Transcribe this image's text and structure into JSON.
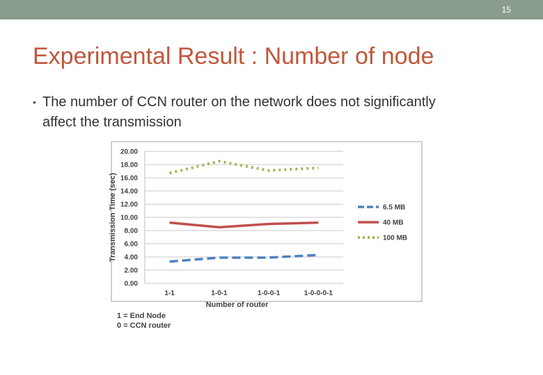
{
  "slide": {
    "number": "15",
    "title": "Experimental Result : Number of node",
    "bullet": "The number of CCN router on the network does not significantly affect the transmission",
    "notes": [
      "1 = End Node",
      "0 = CCN router"
    ],
    "colors": {
      "topbar": "#8a9c8e",
      "title": "#c0573a"
    }
  },
  "chart_data": {
    "type": "line",
    "categories": [
      "1-1",
      "1-0-1",
      "1-0-0-1",
      "1-0-0-0-1"
    ],
    "series": [
      {
        "name": "6.5 MB",
        "values": [
          3.3,
          3.9,
          3.9,
          4.3
        ],
        "color": "#4f81bd",
        "style": "dashed"
      },
      {
        "name": "40 MB",
        "values": [
          9.2,
          8.5,
          9.0,
          9.2
        ],
        "color": "#c0504d",
        "style": "solid"
      },
      {
        "name": "100 MB",
        "values": [
          16.7,
          18.5,
          17.1,
          17.5
        ],
        "color": "#9bbb59",
        "style": "dotted"
      }
    ],
    "yticks": [
      "0.00",
      "2.00",
      "4.00",
      "6.00",
      "8.00",
      "10.00",
      "12.00",
      "14.00",
      "16.00",
      "18.00",
      "20.00"
    ],
    "xlabel": "Number of router",
    "ylabel": "Transmission Time (sec)",
    "ylim": [
      0,
      20
    ],
    "grid": true,
    "legend": "right"
  }
}
